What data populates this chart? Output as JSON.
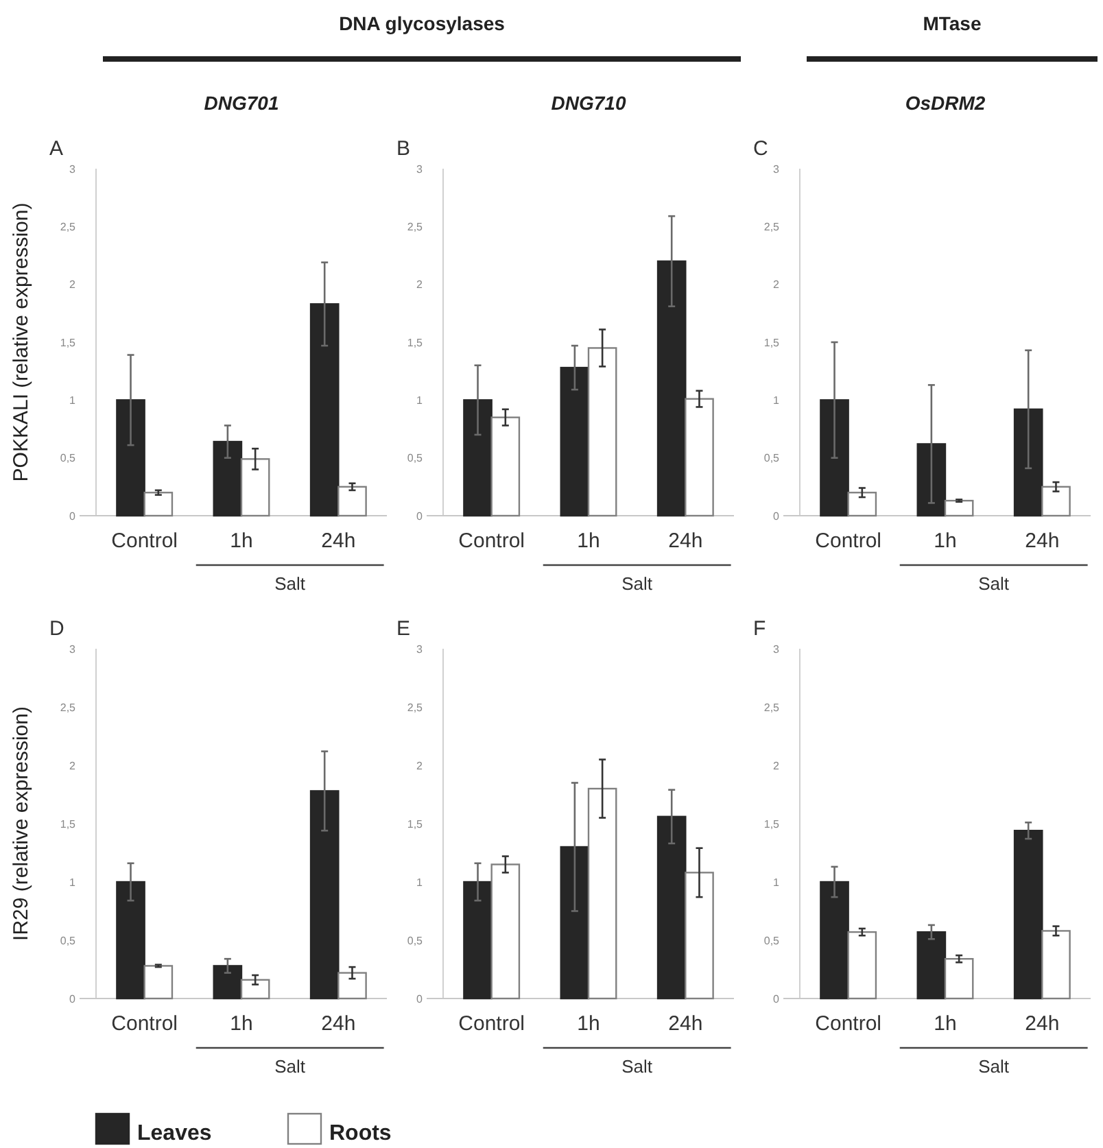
{
  "chart_data": [
    {
      "type": "bar",
      "subtitle": "DNA glycosylases",
      "title": "DNG701",
      "ylabel": "POKKALI (relative expression)",
      "annotations": [
        "A",
        "Salt"
      ],
      "categories": [
        "Control",
        "1h",
        "24h"
      ],
      "ylim": [
        0,
        3
      ],
      "yticks": [
        0,
        {
          "value": 0.5,
          "label": "0,5"
        },
        1,
        {
          "value": 1.5,
          "label": "1,5"
        },
        2,
        {
          "value": 2.5,
          "label": "2,5"
        },
        3
      ],
      "series": [
        {
          "color": "#262626",
          "values": [
            1.0,
            0.64,
            1.83
          ],
          "errors": [
            0.39,
            0.14,
            0.36
          ]
        },
        {
          "color": "#ffffff",
          "values": [
            0.2,
            0.49,
            0.25
          ],
          "errors": [
            0.02,
            0.09,
            0.03
          ]
        }
      ]
    },
    {
      "type": "bar",
      "title": "DNG710",
      "annotations": [
        "B",
        "Salt"
      ],
      "categories": [
        "Control",
        "1h",
        "24h"
      ],
      "ylim": [
        0,
        3
      ],
      "yticks": [
        0,
        {
          "value": 0.5,
          "label": "0,5"
        },
        1,
        {
          "value": 1.5,
          "label": "1,5"
        },
        2,
        {
          "value": 2.5,
          "label": "2,5"
        },
        3
      ],
      "series": [
        {
          "color": "#262626",
          "values": [
            1.0,
            1.28,
            2.2
          ],
          "errors": [
            0.3,
            0.19,
            0.39
          ]
        },
        {
          "color": "#ffffff",
          "values": [
            0.85,
            1.45,
            1.01
          ],
          "errors": [
            0.07,
            0.16,
            0.07
          ]
        }
      ]
    },
    {
      "type": "bar",
      "subtitle": "MTase",
      "title": "OsDRM2",
      "annotations": [
        "C",
        "Salt"
      ],
      "categories": [
        "Control",
        "1h",
        "24h"
      ],
      "ylim": [
        0,
        3
      ],
      "yticks": [
        0,
        {
          "value": 0.5,
          "label": "0,5"
        },
        1,
        {
          "value": 1.5,
          "label": "1,5"
        },
        2,
        {
          "value": 2.5,
          "label": "2,5"
        },
        3
      ],
      "series": [
        {
          "color": "#262626",
          "values": [
            1.0,
            0.62,
            0.92
          ],
          "errors": [
            0.5,
            0.51,
            0.51
          ]
        },
        {
          "color": "#ffffff",
          "values": [
            0.2,
            0.13,
            0.25
          ],
          "errors": [
            0.04,
            0.01,
            0.04
          ]
        }
      ]
    },
    {
      "type": "bar",
      "ylabel": "IR29 (relative expression)",
      "annotations": [
        "D",
        "Salt"
      ],
      "categories": [
        "Control",
        "1h",
        "24h"
      ],
      "ylim": [
        0,
        3
      ],
      "yticks": [
        0,
        {
          "value": 0.5,
          "label": "0,5"
        },
        1,
        {
          "value": 1.5,
          "label": "1,5"
        },
        2,
        {
          "value": 2.5,
          "label": "2,5"
        },
        3
      ],
      "legend": "bottom",
      "series": [
        {
          "name": "Leaves",
          "color": "#262626",
          "values": [
            1.0,
            0.28,
            1.78
          ],
          "errors": [
            0.16,
            0.06,
            0.34
          ]
        },
        {
          "name": "Roots",
          "color": "#ffffff",
          "values": [
            0.28,
            0.16,
            0.22
          ],
          "errors": [
            0.01,
            0.04,
            0.05
          ]
        }
      ]
    },
    {
      "type": "bar",
      "annotations": [
        "E",
        "Salt"
      ],
      "categories": [
        "Control",
        "1h",
        "24h"
      ],
      "ylim": [
        0,
        3
      ],
      "yticks": [
        0,
        {
          "value": 0.5,
          "label": "0,5"
        },
        1,
        {
          "value": 1.5,
          "label": "1,5"
        },
        2,
        {
          "value": 2.5,
          "label": "2,5"
        },
        3
      ],
      "series": [
        {
          "color": "#262626",
          "values": [
            1.0,
            1.3,
            1.56
          ],
          "errors": [
            0.16,
            0.55,
            0.23
          ]
        },
        {
          "color": "#ffffff",
          "values": [
            1.15,
            1.8,
            1.08
          ],
          "errors": [
            0.07,
            0.25,
            0.21
          ]
        }
      ]
    },
    {
      "type": "bar",
      "annotations": [
        "F",
        "Salt"
      ],
      "categories": [
        "Control",
        "1h",
        "24h"
      ],
      "ylim": [
        0,
        3
      ],
      "yticks": [
        0,
        {
          "value": 0.5,
          "label": "0,5"
        },
        1,
        {
          "value": 1.5,
          "label": "1,5"
        },
        2,
        {
          "value": 2.5,
          "label": "2,5"
        },
        3
      ],
      "series": [
        {
          "color": "#262626",
          "values": [
            1.0,
            0.57,
            1.44
          ],
          "errors": [
            0.13,
            0.06,
            0.07
          ]
        },
        {
          "color": "#ffffff",
          "values": [
            0.57,
            0.34,
            0.58
          ],
          "errors": [
            0.03,
            0.03,
            0.04
          ]
        }
      ]
    }
  ]
}
